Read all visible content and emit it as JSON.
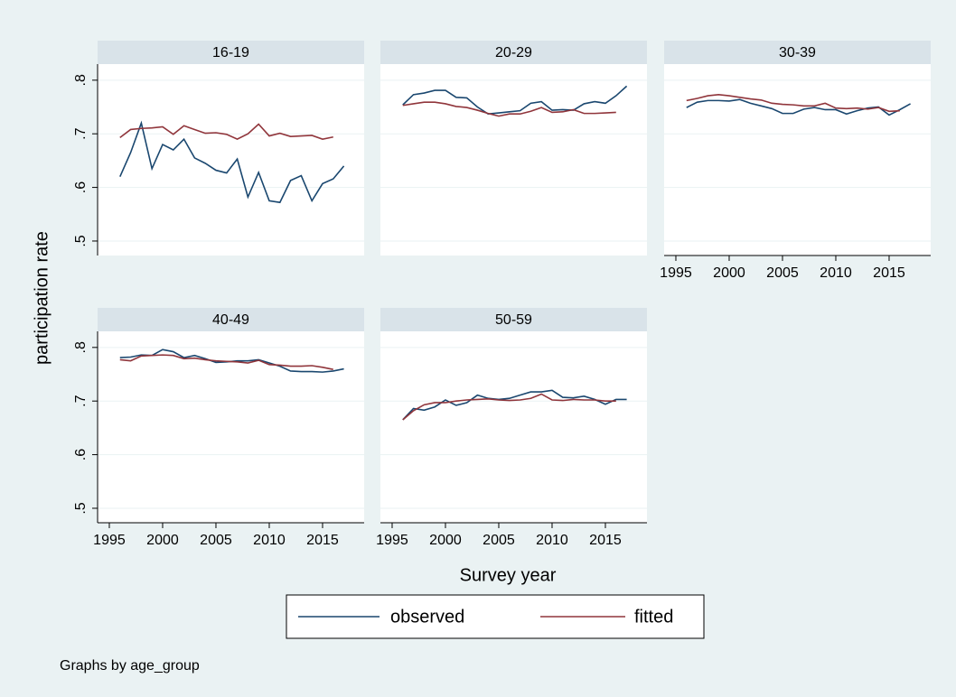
{
  "chart_data": {
    "type": "line",
    "y_label": "participation rate",
    "x_label": "Survey year",
    "note": "Graphs by age_group",
    "xlim": [
      1993.9,
      2018.9
    ],
    "ylim": [
      0.473,
      0.83
    ],
    "xticks": [
      1995,
      2000,
      2005,
      2010,
      2015
    ],
    "yticks": [
      {
        "value": 0.5,
        "label": ".5"
      },
      {
        "value": 0.6,
        "label": ".6"
      },
      {
        "value": 0.7,
        "label": ".7"
      },
      {
        "value": 0.8,
        "label": ".8"
      }
    ],
    "grid": true,
    "legend": [
      {
        "name": "observed",
        "color": "#1a476f"
      },
      {
        "name": "fitted",
        "color": "#90353b"
      }
    ],
    "x": [
      1996,
      1997,
      1998,
      1999,
      2000,
      2001,
      2002,
      2003,
      2004,
      2005,
      2006,
      2007,
      2008,
      2009,
      2010,
      2011,
      2012,
      2013,
      2014,
      2015,
      2016,
      2017
    ],
    "panels": [
      {
        "title": "16-19",
        "series": [
          {
            "values": [
              0.62,
              0.665,
              0.72,
              0.635,
              0.68,
              0.67,
              0.69,
              0.655,
              0.645,
              0.632,
              0.627,
              0.653,
              0.582,
              0.628,
              0.575,
              0.572,
              0.613,
              0.622,
              0.575,
              0.607,
              0.616,
              0.64
            ]
          },
          {
            "values": [
              0.693,
              0.708,
              0.71,
              0.711,
              0.713,
              0.699,
              0.715,
              0.708,
              0.701,
              0.702,
              0.699,
              0.69,
              0.7,
              0.718,
              0.696,
              0.701,
              0.695,
              0.696,
              0.697,
              0.69,
              0.694,
              null
            ]
          }
        ]
      },
      {
        "title": "20-29",
        "series": [
          {
            "values": [
              0.754,
              0.773,
              0.776,
              0.781,
              0.781,
              0.768,
              0.767,
              0.75,
              0.737,
              0.739,
              0.741,
              0.743,
              0.757,
              0.76,
              0.744,
              0.745,
              0.744,
              0.756,
              0.76,
              0.757,
              0.771,
              0.789
            ]
          },
          {
            "values": [
              0.753,
              0.756,
              0.759,
              0.759,
              0.756,
              0.751,
              0.749,
              0.744,
              0.738,
              0.733,
              0.737,
              0.737,
              0.742,
              0.749,
              0.74,
              0.741,
              0.745,
              0.738,
              0.738,
              0.739,
              0.74,
              null
            ]
          }
        ]
      },
      {
        "title": "30-39",
        "series": [
          {
            "values": [
              0.749,
              0.759,
              0.762,
              0.762,
              0.761,
              0.764,
              0.757,
              0.752,
              0.747,
              0.738,
              0.738,
              0.746,
              0.749,
              0.745,
              0.745,
              0.737,
              0.743,
              0.748,
              0.75,
              0.735,
              0.745,
              0.756
            ]
          },
          {
            "values": [
              0.762,
              0.766,
              0.771,
              0.773,
              0.771,
              0.768,
              0.765,
              0.763,
              0.757,
              0.755,
              0.754,
              0.752,
              0.752,
              0.757,
              0.748,
              0.747,
              0.748,
              0.746,
              0.749,
              0.742,
              0.743,
              null
            ]
          }
        ]
      },
      {
        "title": "40-49",
        "series": [
          {
            "values": [
              0.781,
              0.782,
              0.786,
              0.785,
              0.796,
              0.792,
              0.781,
              0.785,
              0.779,
              0.772,
              0.773,
              0.775,
              0.775,
              0.777,
              0.771,
              0.765,
              0.756,
              0.755,
              0.755,
              0.754,
              0.756,
              0.76
            ]
          },
          {
            "values": [
              0.777,
              0.775,
              0.784,
              0.785,
              0.786,
              0.785,
              0.779,
              0.78,
              0.777,
              0.775,
              0.774,
              0.773,
              0.771,
              0.776,
              0.768,
              0.767,
              0.765,
              0.765,
              0.766,
              0.763,
              0.759,
              null
            ]
          }
        ]
      },
      {
        "title": "50-59",
        "series": [
          {
            "values": [
              0.665,
              0.686,
              0.683,
              0.689,
              0.702,
              0.692,
              0.697,
              0.711,
              0.705,
              0.703,
              0.705,
              0.711,
              0.717,
              0.717,
              0.72,
              0.707,
              0.706,
              0.709,
              0.703,
              0.694,
              0.703,
              0.703
            ]
          },
          {
            "values": [
              0.665,
              0.682,
              0.693,
              0.697,
              0.697,
              0.7,
              0.702,
              0.703,
              0.704,
              0.702,
              0.701,
              0.702,
              0.705,
              0.713,
              0.702,
              0.701,
              0.703,
              0.702,
              0.702,
              0.7,
              0.7,
              null
            ]
          }
        ]
      }
    ]
  }
}
